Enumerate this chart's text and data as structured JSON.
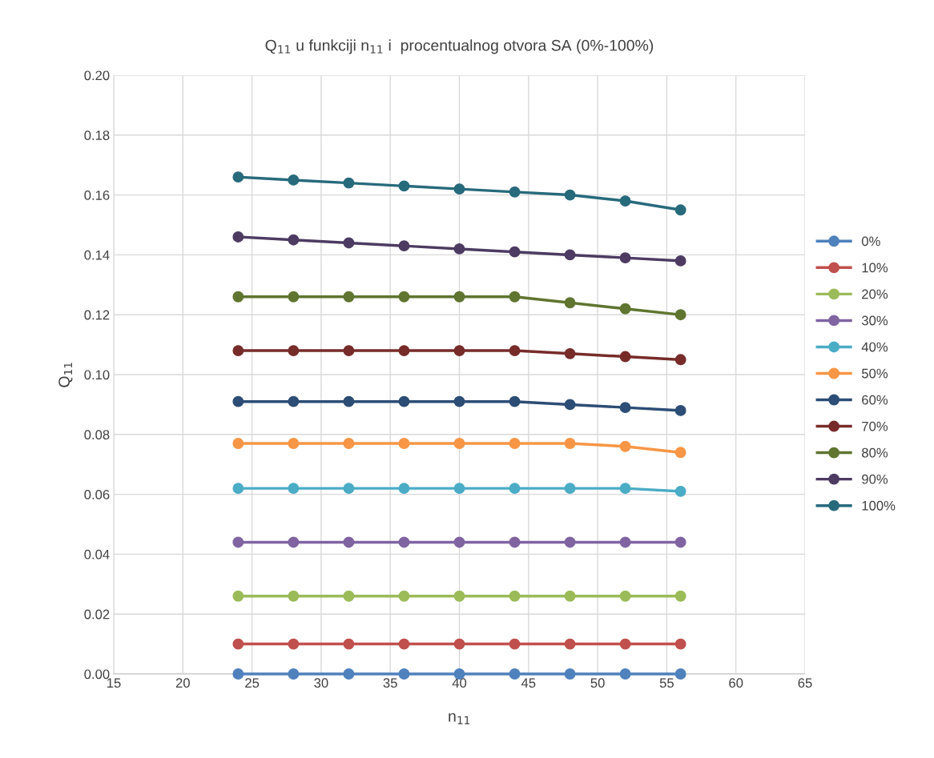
{
  "chart_data": {
    "type": "line",
    "title": "Q$_{11}$ u funkciji n$_{11}$ i  procentualnog otvora SA (0%-100%)",
    "xlabel": "n$_{11}$",
    "ylabel": "Q$_{11}$",
    "x": [
      24,
      28,
      32,
      36,
      40,
      44,
      48,
      52,
      56
    ],
    "series": [
      {
        "name": "0%",
        "color": "#4f81bd",
        "values": [
          0,
          0,
          0,
          0,
          0,
          0,
          0,
          0,
          0
        ]
      },
      {
        "name": "10%",
        "color": "#c0504d",
        "values": [
          0.01,
          0.01,
          0.01,
          0.01,
          0.01,
          0.01,
          0.01,
          0.01,
          0.01
        ]
      },
      {
        "name": "20%",
        "color": "#9bbb59",
        "values": [
          0.026,
          0.026,
          0.026,
          0.026,
          0.026,
          0.026,
          0.026,
          0.026,
          0.026
        ]
      },
      {
        "name": "30%",
        "color": "#8064a2",
        "values": [
          0.044,
          0.044,
          0.044,
          0.044,
          0.044,
          0.044,
          0.044,
          0.044,
          0.044
        ]
      },
      {
        "name": "40%",
        "color": "#4bacc6",
        "values": [
          0.062,
          0.062,
          0.062,
          0.062,
          0.062,
          0.062,
          0.062,
          0.062,
          0.061
        ]
      },
      {
        "name": "50%",
        "color": "#f79646",
        "values": [
          0.077,
          0.077,
          0.077,
          0.077,
          0.077,
          0.077,
          0.077,
          0.076,
          0.074
        ]
      },
      {
        "name": "60%",
        "color": "#2c4d75",
        "values": [
          0.091,
          0.091,
          0.091,
          0.091,
          0.091,
          0.091,
          0.09,
          0.089,
          0.088
        ]
      },
      {
        "name": "70%",
        "color": "#772c2a",
        "values": [
          0.108,
          0.108,
          0.108,
          0.108,
          0.108,
          0.108,
          0.107,
          0.106,
          0.105
        ]
      },
      {
        "name": "80%",
        "color": "#5f7530",
        "values": [
          0.126,
          0.126,
          0.126,
          0.126,
          0.126,
          0.126,
          0.124,
          0.122,
          0.12
        ]
      },
      {
        "name": "90%",
        "color": "#4d3b62",
        "values": [
          0.146,
          0.145,
          0.144,
          0.143,
          0.142,
          0.141,
          0.14,
          0.139,
          0.138
        ]
      },
      {
        "name": "100%",
        "color": "#276a7c",
        "values": [
          0.166,
          0.165,
          0.164,
          0.163,
          0.162,
          0.161,
          0.16,
          0.158,
          0.155
        ]
      }
    ],
    "xlim": [
      15,
      65
    ],
    "xticks": [
      15,
      20,
      25,
      30,
      35,
      40,
      45,
      50,
      55,
      60,
      65
    ],
    "ylim": [
      0,
      0.2
    ],
    "yticks": [
      {
        "value": 0,
        "label": "0.00"
      },
      {
        "value": 0.02,
        "label": "0.02"
      },
      {
        "value": 0.04,
        "label": "0.04"
      },
      {
        "value": 0.06,
        "label": "0.06"
      },
      {
        "value": 0.08,
        "label": "0.08"
      },
      {
        "value": 0.1,
        "label": "0.10"
      },
      {
        "value": 0.12,
        "label": "0.12"
      },
      {
        "value": 0.14,
        "label": "0.14"
      },
      {
        "value": 0.16,
        "label": "0.16"
      },
      {
        "value": 0.18,
        "label": "0.18"
      },
      {
        "value": 0.2,
        "label": "0.20"
      }
    ],
    "grid": true,
    "legend": "right",
    "marker": "circle",
    "line_style": "solid"
  }
}
